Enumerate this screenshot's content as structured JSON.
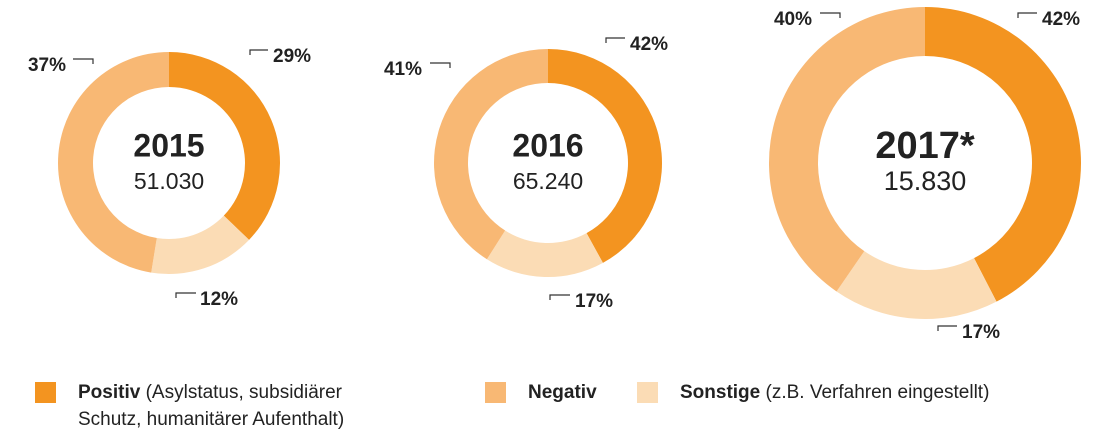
{
  "chart_data": [
    {
      "type": "donut",
      "title": "2015",
      "subtitle": "51.030",
      "categories": [
        "Positiv",
        "Negativ",
        "Sonstige"
      ],
      "values": [
        29,
        37,
        12
      ],
      "value_labels": [
        "29%",
        "37%",
        "12%"
      ],
      "colors": [
        "#f39420",
        "#f8b874",
        "#fbdcb5"
      ]
    },
    {
      "type": "donut",
      "title": "2016",
      "subtitle": "65.240",
      "categories": [
        "Positiv",
        "Negativ",
        "Sonstige"
      ],
      "values": [
        42,
        41,
        17
      ],
      "value_labels": [
        "42%",
        "41%",
        "17%"
      ],
      "colors": [
        "#f39420",
        "#f8b874",
        "#fbdcb5"
      ]
    },
    {
      "type": "donut",
      "title": "2017*",
      "subtitle": "15.830",
      "categories": [
        "Positiv",
        "Negativ",
        "Sonstige"
      ],
      "values": [
        42,
        40,
        17
      ],
      "value_labels": [
        "42%",
        "40%",
        "17%"
      ],
      "colors": [
        "#f39420",
        "#f8b874",
        "#fbdcb5"
      ]
    }
  ],
  "legend_notes": [
    "(Asylstatus, subsidiärer",
    "Schutz, humanitärer Aufenthalt)",
    "",
    "(z.B. Verfahren eingestellt)"
  ]
}
